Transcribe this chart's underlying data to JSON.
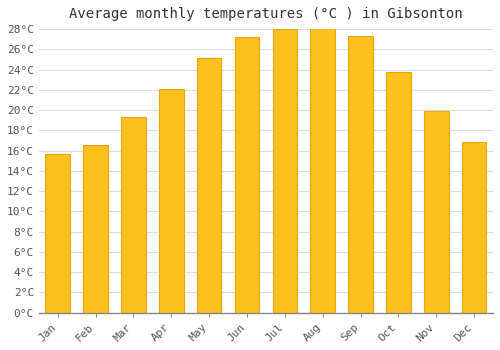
{
  "months": [
    "Jan",
    "Feb",
    "Mar",
    "Apr",
    "May",
    "Jun",
    "Jul",
    "Aug",
    "Sep",
    "Oct",
    "Nov",
    "Dec"
  ],
  "values": [
    15.7,
    16.6,
    19.3,
    22.1,
    25.1,
    27.2,
    28.0,
    28.1,
    27.3,
    23.8,
    19.9,
    16.8
  ],
  "bar_color": "#FFC020",
  "bar_edge_color": "#E8A800",
  "title": "Average monthly temperatures (°C ) in Gibsonton",
  "ylim": [
    0,
    28
  ],
  "ytick_step": 2,
  "background_color": "#FFFFFF",
  "grid_color": "#DDDDDD",
  "title_fontsize": 10,
  "tick_fontsize": 8,
  "font_family": "monospace"
}
